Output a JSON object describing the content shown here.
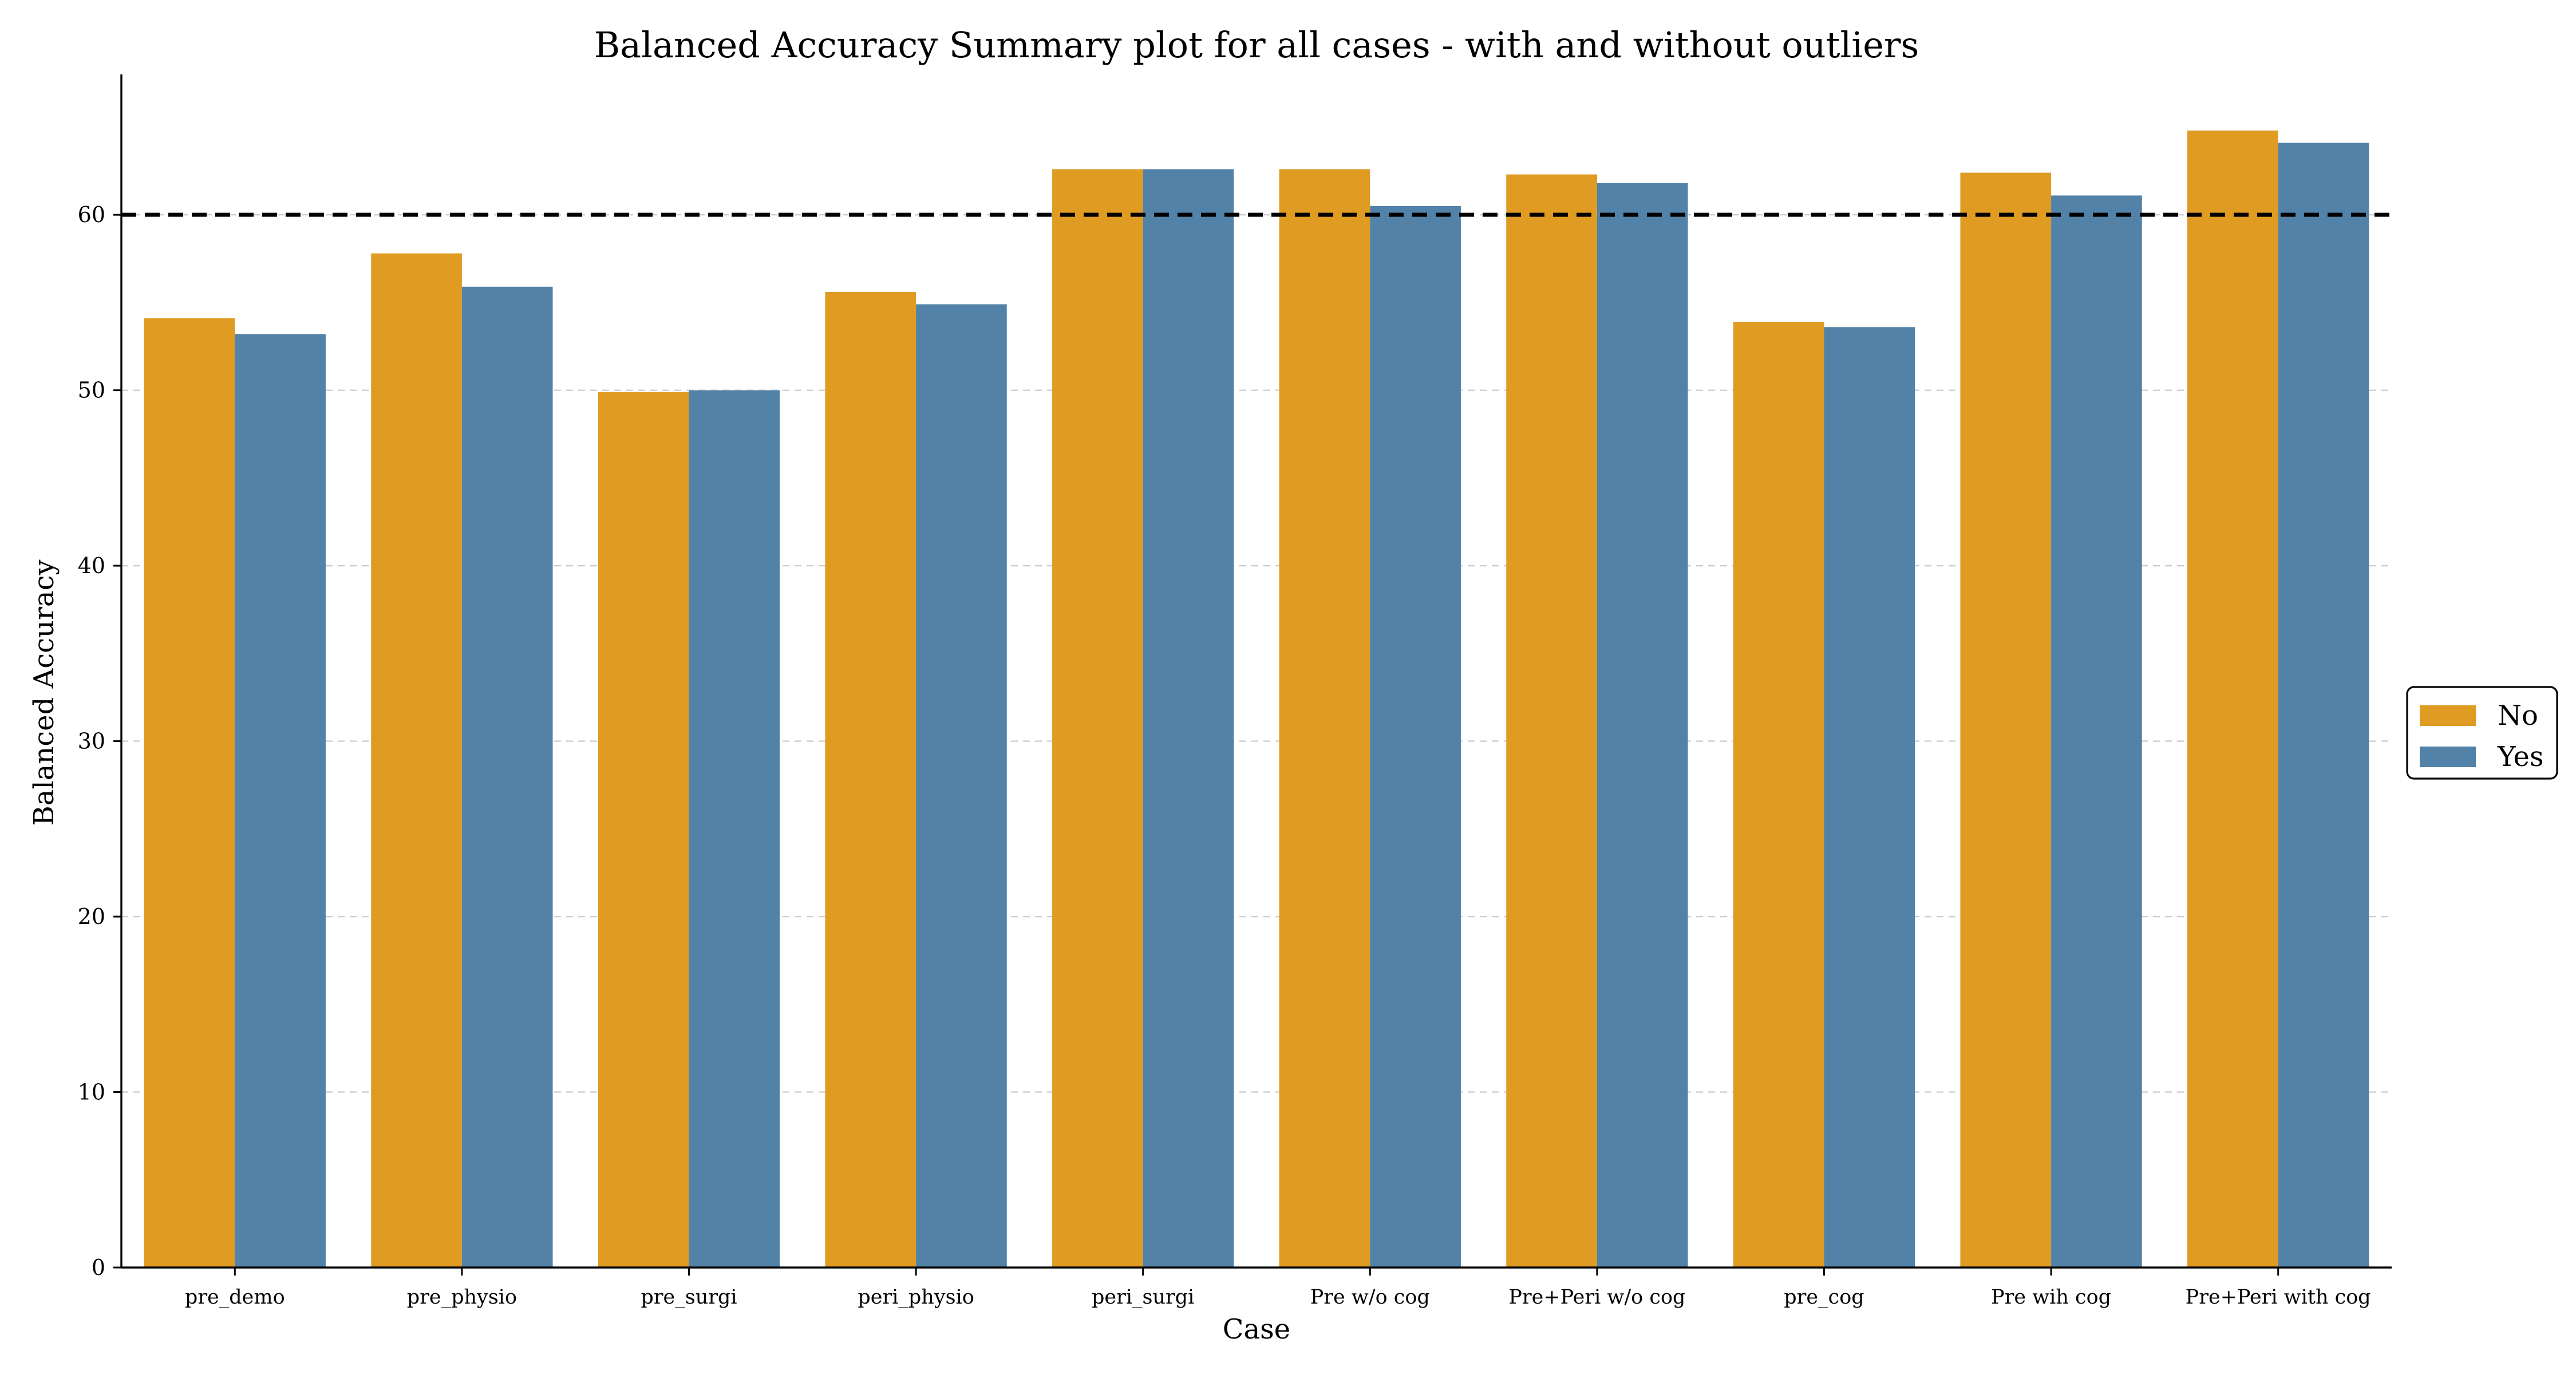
{
  "chart_data": {
    "type": "bar",
    "title": "Balanced Accuracy Summary plot for all cases - with and without outliers",
    "xlabel": "Case",
    "ylabel": "Balanced Accuracy",
    "ylim": [
      0,
      68
    ],
    "yticks": [
      0,
      10,
      20,
      30,
      40,
      50,
      60
    ],
    "grid": "horizontal dashed",
    "legend_position": "right",
    "reference_line": {
      "y": 60,
      "style": "dashed",
      "color": "#000000"
    },
    "categories": [
      "pre_demo",
      "pre_physio",
      "pre_surgi",
      "peri_physio",
      "peri_surgi",
      "Pre w/o cog",
      "Pre+Peri w/o cog",
      "pre_cog",
      "Pre wih cog",
      "Pre+Peri with cog"
    ],
    "series": [
      {
        "name": "No",
        "color": "#df9b22",
        "values": [
          54.1,
          57.8,
          49.9,
          55.6,
          62.6,
          62.6,
          62.3,
          53.9,
          62.4,
          64.8
        ]
      },
      {
        "name": "Yes",
        "color": "#5282a7",
        "values": [
          53.2,
          55.9,
          50.0,
          54.9,
          62.6,
          60.5,
          61.8,
          53.6,
          61.1,
          64.1
        ]
      }
    ]
  }
}
